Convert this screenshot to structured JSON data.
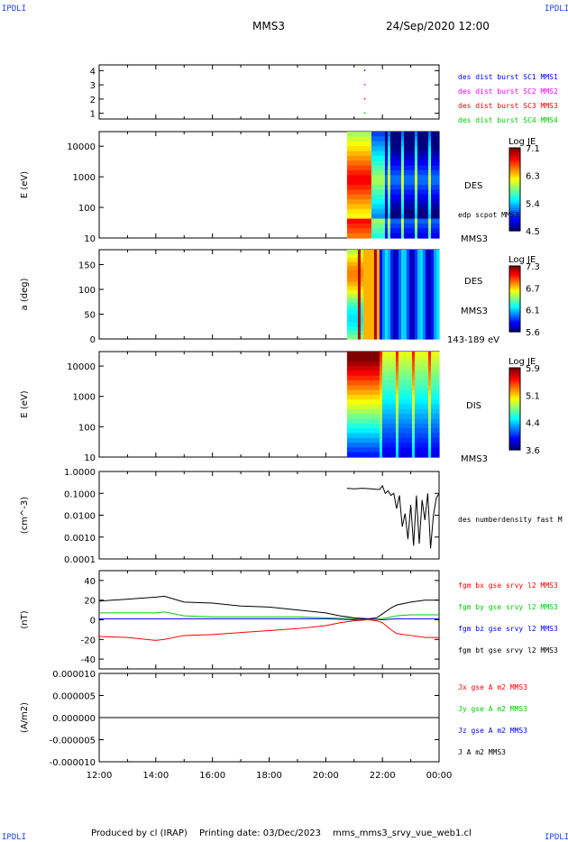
{
  "corner_label": "IPDLI",
  "header": {
    "spacecraft": "MMS3",
    "date_time": "24/Sep/2020 12:00"
  },
  "footer": {
    "produced_by": "Produced by cl (IRAP)",
    "printing_date": "Printing date: 03/Dec/2023",
    "script_name": "mms_mms3_srvy_vue_web1.cl"
  },
  "colors": {
    "sc1": "#0000ff",
    "sc2": "#ff00ff",
    "sc3": "#ff0000",
    "sc4": "#00cc00",
    "bx": "#ff0000",
    "by": "#00cc00",
    "bz": "#0000ff",
    "bt": "#000000",
    "axis": "#000000"
  },
  "chart_data": [
    {
      "id": "burst",
      "type": "scatter",
      "ylabel": "",
      "y_ticks": [
        "1",
        "2",
        "3",
        "4"
      ],
      "ylim": [
        0.6,
        4.4
      ],
      "legend": [
        "des dist burst SC1 MMS1",
        "des dist burst SC2 MMS2",
        "des dist burst SC3 MMS3",
        "des dist burst SC4 MMS4"
      ],
      "series": [
        {
          "x": [
            21.35
          ],
          "y": [
            4
          ]
        },
        {
          "x": [
            21.35
          ],
          "y": [
            3
          ]
        },
        {
          "x": [
            21.35
          ],
          "y": [
            2
          ]
        },
        {
          "x": [
            21.35
          ],
          "y": [
            1
          ]
        }
      ]
    },
    {
      "id": "des_energy",
      "type": "heatmap",
      "ylabel": "E (eV)",
      "y_ticks": [
        "10",
        "100",
        "1000",
        "10000"
      ],
      "ylim": [
        10,
        30000
      ],
      "scale": "log",
      "data_start": 20.75,
      "colorbar": {
        "title": "Log JE",
        "ticks": [
          "7.1",
          "6.3",
          "5.4",
          "4.5"
        ]
      },
      "side_labels": [
        "DES",
        "edp scpot MMS3",
        "MMS3"
      ]
    },
    {
      "id": "des_pitch",
      "type": "heatmap",
      "ylabel": "a (deg)",
      "y_ticks": [
        "0",
        "50",
        "100",
        "150"
      ],
      "ylim": [
        0,
        180
      ],
      "data_start": 20.75,
      "colorbar": {
        "title": "Log JE",
        "ticks": [
          "7.3",
          "6.7",
          "6.1",
          "5.6"
        ]
      },
      "side_labels": [
        "DES",
        "MMS3",
        "143-189 eV"
      ]
    },
    {
      "id": "dis_energy",
      "type": "heatmap",
      "ylabel": "E (eV)",
      "y_ticks": [
        "10",
        "100",
        "1000",
        "10000"
      ],
      "ylim": [
        10,
        30000
      ],
      "scale": "log",
      "data_start": 20.75,
      "colorbar": {
        "title": "Log JE",
        "ticks": [
          "5.9",
          "5.1",
          "4.4",
          "3.6"
        ]
      },
      "side_labels": [
        "DIS",
        "MMS3"
      ]
    },
    {
      "id": "density",
      "type": "line",
      "ylabel": "(cm^-3)",
      "y_ticks": [
        "0.0001",
        "0.0010",
        "0.0100",
        "0.1000",
        "1.0000"
      ],
      "ylim": [
        0.0001,
        1
      ],
      "scale": "log",
      "legend": [
        "des numberdensity fast M"
      ],
      "series": [
        {
          "name": "des numberdensity fast M",
          "x": [
            20.75,
            21.0,
            21.3,
            21.6,
            21.9,
            22.0,
            22.1,
            22.2,
            22.3,
            22.4,
            22.5,
            22.6,
            22.7,
            22.8,
            22.9,
            23.0,
            23.1,
            23.2,
            23.3,
            23.4,
            23.5,
            23.6,
            23.7,
            23.8,
            23.9,
            24.0
          ],
          "y": [
            0.17,
            0.16,
            0.17,
            0.16,
            0.15,
            0.22,
            0.1,
            0.13,
            0.08,
            0.1,
            0.02,
            0.08,
            0.003,
            0.012,
            0.0008,
            0.03,
            0.0004,
            0.08,
            0.0005,
            0.05,
            0.006,
            0.1,
            0.0003,
            0.01,
            0.06,
            0.1
          ]
        }
      ]
    },
    {
      "id": "fgm",
      "type": "line",
      "ylabel": "(nT)",
      "y_ticks": [
        "-40",
        "-20",
        "0",
        "20",
        "40"
      ],
      "ylim": [
        -50,
        50
      ],
      "legend": [
        "fgm bx gse srvy l2 MMS3",
        "fgm by gse srvy l2 MMS3",
        "fgm bz gse srvy l2 MMS3",
        "fgm bt gse srvy l2 MMS3"
      ],
      "series": [
        {
          "name": "fgm bx gse srvy l2 MMS3",
          "x": [
            12,
            13,
            14,
            14.3,
            15,
            16,
            17,
            18,
            19,
            20,
            20.5,
            21,
            21.5,
            21.8,
            22,
            22.3,
            22.5,
            23,
            23.5,
            24
          ],
          "y": [
            -17,
            -18,
            -21,
            -20,
            -16,
            -15,
            -13,
            -11,
            -9,
            -6,
            -3,
            -1,
            0,
            -1,
            -3,
            -10,
            -14,
            -16,
            -18,
            -18
          ]
        },
        {
          "name": "fgm by gse srvy l2 MMS3",
          "x": [
            12,
            13,
            14,
            14.3,
            15,
            16,
            17,
            18,
            19,
            20,
            21,
            21.5,
            22,
            22.5,
            23,
            24
          ],
          "y": [
            7,
            7,
            7,
            8,
            4,
            3,
            3,
            3,
            3,
            2,
            1,
            0,
            1,
            4,
            5,
            5
          ]
        },
        {
          "name": "fgm bz gse srvy l2 MMS3",
          "x": [
            12,
            14,
            16,
            18,
            20,
            21,
            21.5,
            22,
            22.5,
            24
          ],
          "y": [
            1,
            1,
            1,
            1,
            1,
            0,
            1,
            0,
            1,
            1
          ]
        },
        {
          "name": "fgm bt gse srvy l2 MMS3",
          "x": [
            12,
            13,
            14,
            14.3,
            15,
            16,
            17,
            18,
            19,
            20,
            20.5,
            21,
            21.5,
            21.8,
            22,
            22.3,
            22.5,
            23,
            23.5,
            24
          ],
          "y": [
            19,
            21,
            23,
            24,
            18,
            17,
            14,
            13,
            10,
            7,
            4,
            2,
            1,
            2,
            6,
            12,
            15,
            18,
            20,
            20
          ]
        }
      ]
    },
    {
      "id": "current",
      "type": "line",
      "ylabel": "(A/m2)",
      "y_ticks": [
        "-0.000010",
        "-0.000005",
        "0.000000",
        "0.000005",
        "0.000010"
      ],
      "ylim": [
        -1e-05,
        1e-05
      ],
      "legend": [
        "Jx gse A m2 MMS3",
        "Jy gse A m2 MMS3",
        "Jz gse A m2 MMS3",
        "J A m2 MMS3"
      ],
      "series": [
        {
          "name": "J A m2 MMS3",
          "x": [
            12,
            24
          ],
          "y": [
            0,
            0
          ]
        }
      ]
    }
  ],
  "x_axis": {
    "ticks": [
      "12:00",
      "14:00",
      "16:00",
      "18:00",
      "20:00",
      "22:00",
      "00:00"
    ]
  }
}
